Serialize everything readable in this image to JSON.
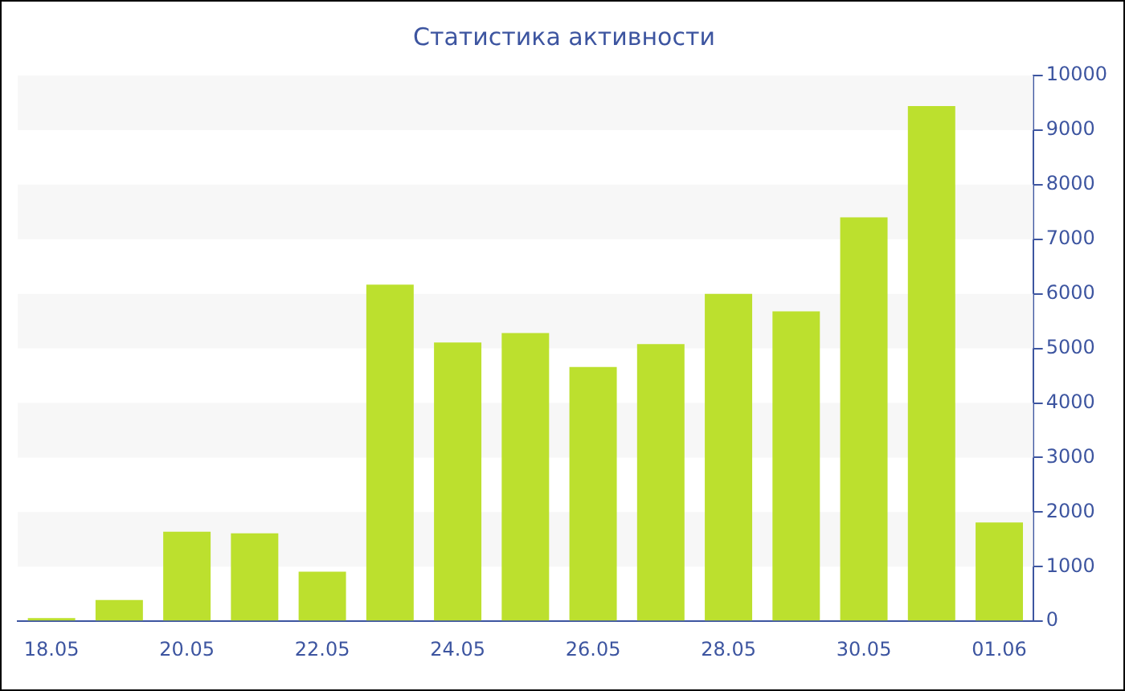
{
  "chart_data": {
    "type": "bar",
    "title": "Статистика активности",
    "categories": [
      "18.05",
      null,
      "20.05",
      null,
      "22.05",
      null,
      "24.05",
      null,
      "26.05",
      null,
      "28.05",
      null,
      "30.05",
      null,
      "01.06"
    ],
    "values": [
      60,
      390,
      1640,
      1610,
      910,
      6170,
      5110,
      5280,
      4660,
      5080,
      6000,
      5680,
      7400,
      9440,
      1810
    ],
    "color": "#bce02e",
    "ylim": [
      0,
      10000
    ],
    "yticks": [
      0,
      1000,
      2000,
      3000,
      4000,
      5000,
      6000,
      7000,
      8000,
      9000,
      10000
    ]
  }
}
